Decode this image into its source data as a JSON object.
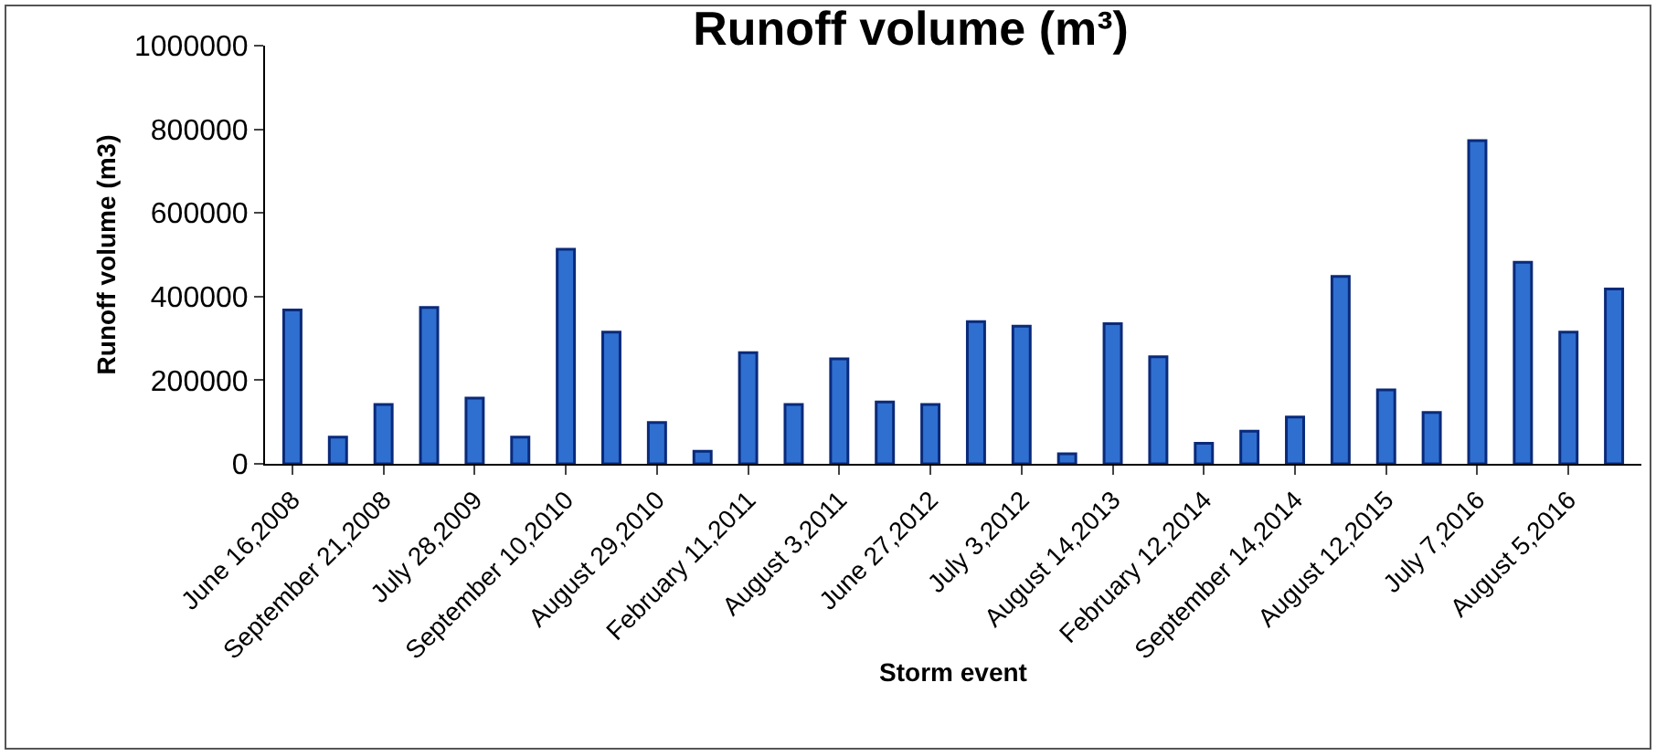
{
  "chart_data": {
    "type": "bar",
    "title": "Runoff volume (m³)",
    "xlabel": "Storm event",
    "ylabel": "Runoff volume (m3)",
    "categories": [
      "June 16,2008",
      null,
      "September 21,2008",
      null,
      "July 28,2009",
      null,
      "September 10,2010",
      null,
      "August 29,2010",
      null,
      "February 11,2011",
      null,
      "August 3,2011",
      null,
      "June 27,2012",
      null,
      "July 3,2012",
      null,
      "August 14,2013",
      null,
      "February 12,2014",
      null,
      "September 14,2014",
      null,
      "August 12,2015",
      null,
      "July 7,2016",
      null,
      "August 5,2016",
      null
    ],
    "values": [
      368000,
      64000,
      142000,
      374000,
      157000,
      64000,
      513000,
      315000,
      99000,
      30000,
      266000,
      142000,
      251000,
      148000,
      142000,
      340000,
      329000,
      24000,
      335000,
      256000,
      49000,
      78000,
      112000,
      448000,
      177000,
      123000,
      773000,
      482000,
      315000,
      418000
    ],
    "color": "#2f6fd0",
    "ylim": [
      0,
      1000000
    ],
    "yticks": [
      0,
      200000,
      400000,
      600000,
      800000,
      1000000
    ]
  }
}
